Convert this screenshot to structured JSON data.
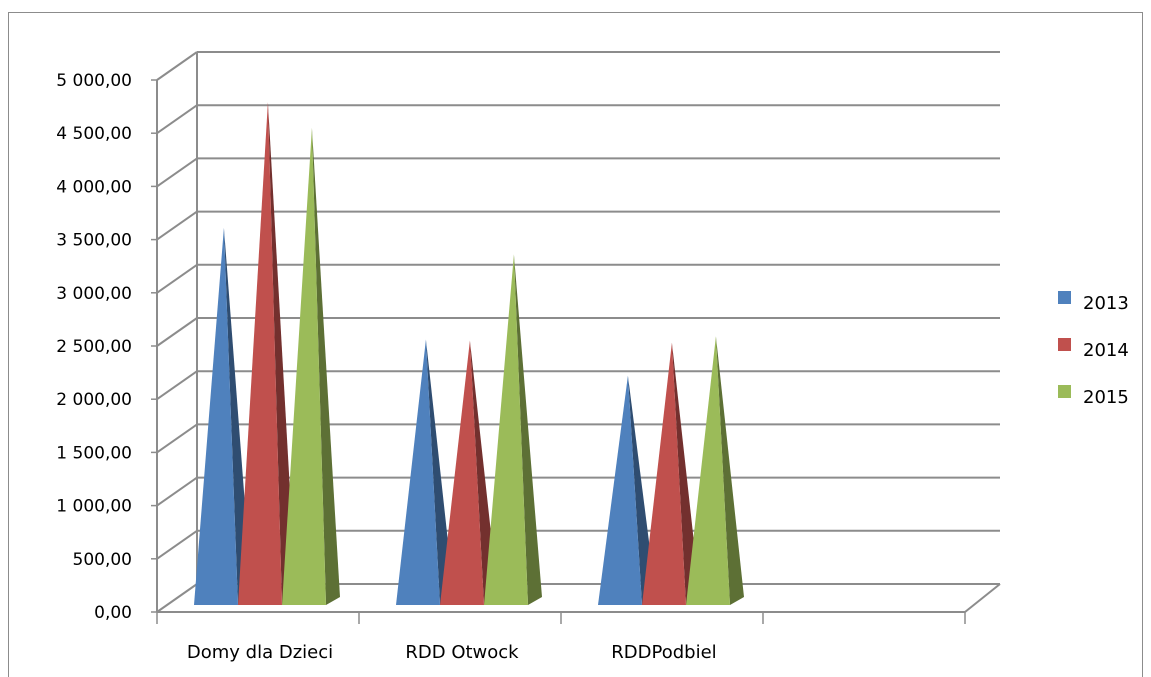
{
  "chart_data": {
    "type": "bar",
    "style": "3d-pyramid",
    "categories": [
      "Domy dla Dzieci",
      "RDD Otwock",
      "RDDPodbiel"
    ],
    "series": [
      {
        "name": "2013",
        "color": "#4f81bd",
        "values": [
          3480,
          2430,
          2090
        ]
      },
      {
        "name": "2014",
        "color": "#c0504d",
        "values": [
          4660,
          2420,
          2400
        ]
      },
      {
        "name": "2015",
        "color": "#9bbb59",
        "values": [
          4420,
          3230,
          2460
        ]
      }
    ],
    "ylim": [
      0,
      5000
    ],
    "yticks": [
      "0,00",
      "500,00",
      "1 000,00",
      "1 500,00",
      "2 000,00",
      "2 500,00",
      "3 000,00",
      "3 500,00",
      "4 000,00",
      "4 500,00",
      "5 000,00"
    ],
    "grid": true,
    "legend": "right",
    "title": "",
    "xlabel": "",
    "ylabel": ""
  }
}
